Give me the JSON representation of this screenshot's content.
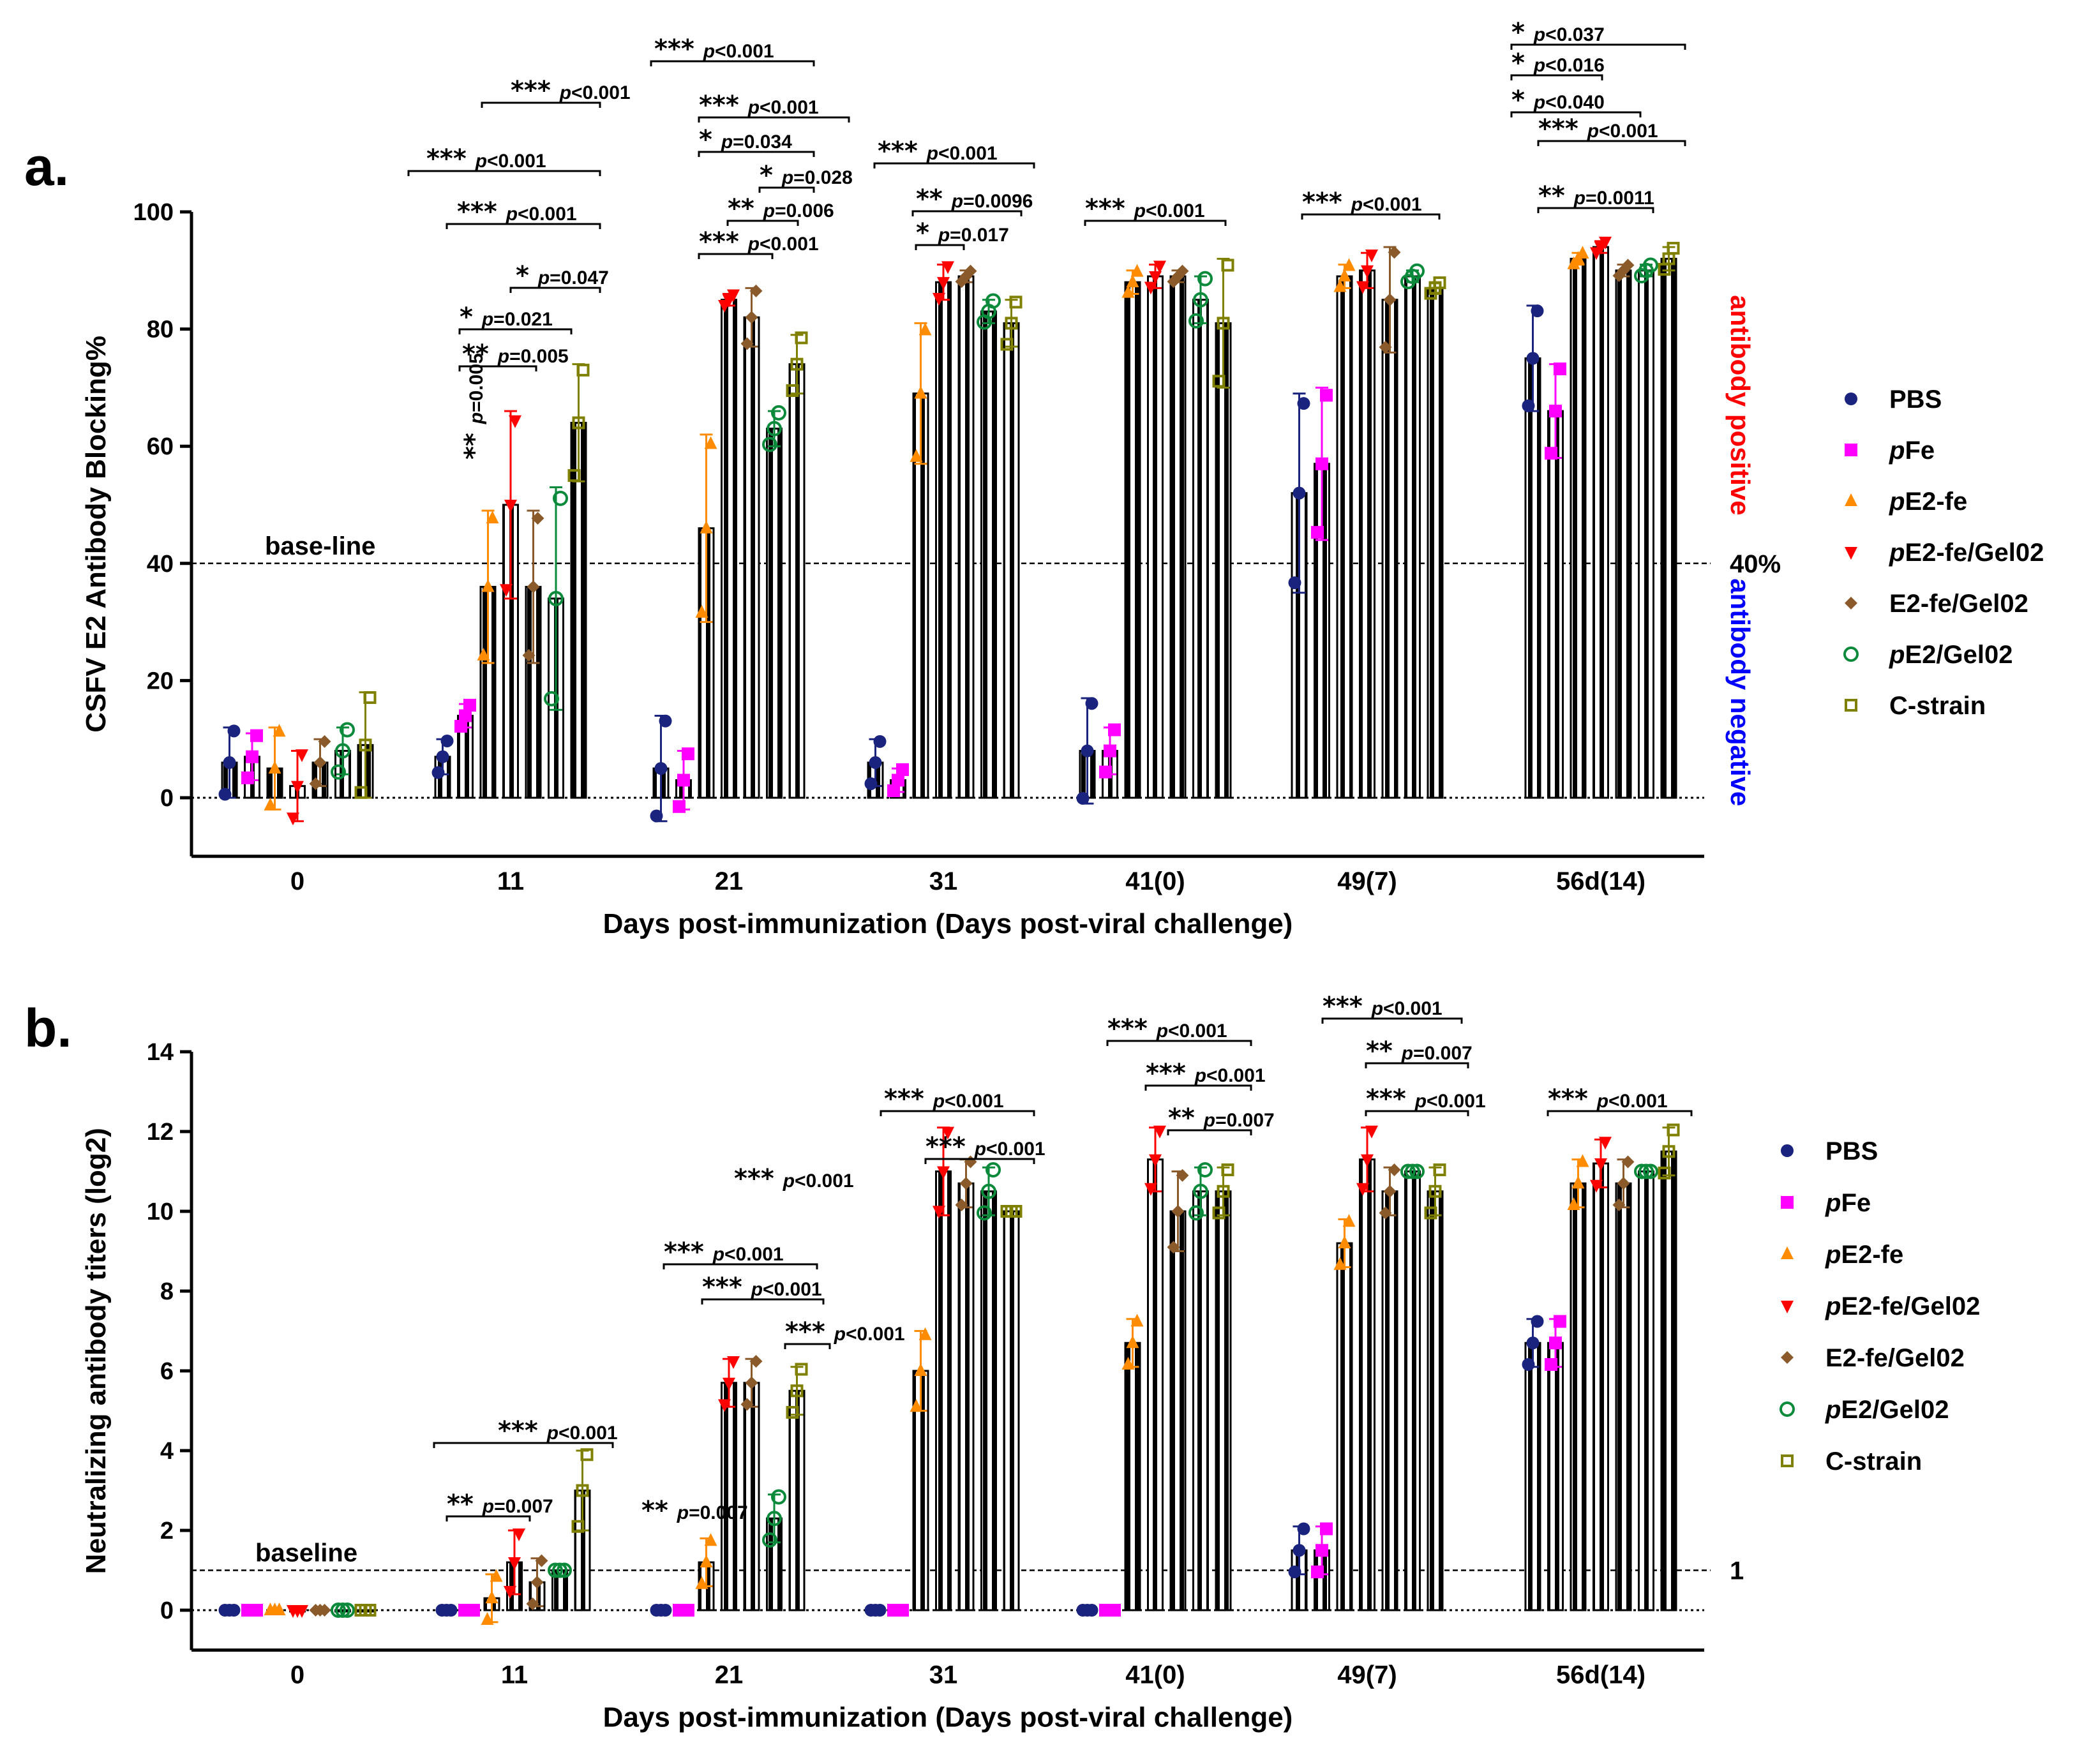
{
  "chart_data": [
    {
      "panel": "a.",
      "type": "bar",
      "ylabel": "CSFV E2 Antibody Blocking%",
      "xlabel": "Days post-immunization (Days post-viral challenge)",
      "ylim": [
        -10,
        100
      ],
      "yticks": [
        0,
        20,
        40,
        60,
        80,
        100
      ],
      "categories": [
        "0",
        "11",
        "21",
        "31",
        "41(0)",
        "49(7)",
        "56d(14)"
      ],
      "reference_line": {
        "value": 40,
        "label": "base-line",
        "right_label": "40%"
      },
      "side_labels": {
        "upper": "antibody positive",
        "lower": "antibody negative",
        "upper_color": "#ff0000",
        "lower_color": "#0000ff"
      },
      "series": [
        {
          "name": "PBS",
          "marker": "circle",
          "color": "#1a237e",
          "values": [
            6,
            7,
            5,
            6,
            8,
            52,
            75
          ],
          "sd": [
            6,
            3,
            9,
            4,
            9,
            17,
            9
          ]
        },
        {
          "name": "pFe",
          "marker": "square",
          "color": "#ff00ff",
          "values": [
            7,
            14,
            3,
            3,
            8,
            57,
            66
          ],
          "sd": [
            4,
            2,
            5,
            2,
            4,
            13,
            8
          ],
          "styled_name": [
            "p",
            "Fe"
          ]
        },
        {
          "name": "pE2-fe",
          "marker": "triangle-up",
          "color": "#ff8c00",
          "values": [
            5,
            36,
            46,
            69,
            88,
            89,
            92
          ],
          "sd": [
            7,
            13,
            16,
            12,
            2,
            2,
            1
          ],
          "styled_name": [
            "p",
            "E2-fe"
          ]
        },
        {
          "name": "pE2-fe/Gel02",
          "marker": "triangle-down",
          "color": "#ff0000",
          "values": [
            2,
            50,
            85,
            88,
            89,
            90,
            94
          ],
          "sd": [
            6,
            16,
            1,
            3,
            2,
            3,
            1
          ],
          "styled_name": [
            "p",
            "E2-fe/Gel02"
          ]
        },
        {
          "name": "E2-fe/Gel02",
          "marker": "diamond",
          "color": "#8b5a2b",
          "values": [
            6,
            36,
            82,
            89,
            89,
            85,
            90
          ],
          "sd": [
            4,
            13,
            5,
            1,
            1,
            9,
            1
          ]
        },
        {
          "name": "pE2/Gel02",
          "marker": "circle-open",
          "color": "#0a8a3a",
          "values": [
            8,
            34,
            63,
            83,
            85,
            89,
            90
          ],
          "sd": [
            4,
            19,
            3,
            2,
            4,
            1,
            1
          ],
          "styled_name": [
            "p",
            "E2/Gel02"
          ]
        },
        {
          "name": "C-strain",
          "marker": "square-open",
          "color": "#808000",
          "values": [
            9,
            64,
            74,
            81,
            81,
            87,
            92
          ],
          "sd": [
            9,
            10,
            5,
            4,
            11,
            1,
            2
          ]
        }
      ]
    },
    {
      "panel": "b.",
      "type": "bar",
      "ylabel": "Neutralizing antibody titers (log2)",
      "xlabel": "Days post-immunization (Days post-viral challenge)",
      "ylim": [
        -1,
        14
      ],
      "yticks": [
        0,
        2,
        4,
        6,
        8,
        10,
        12,
        14
      ],
      "categories": [
        "0",
        "11",
        "21",
        "31",
        "41(0)",
        "49(7)",
        "56d(14)"
      ],
      "reference_line": {
        "value": 1,
        "label": "baseline",
        "right_label": "1"
      },
      "series": [
        {
          "name": "PBS",
          "marker": "circle",
          "color": "#1a237e",
          "values": [
            0,
            0,
            0,
            0,
            0,
            1.5,
            6.7
          ],
          "sd": [
            0,
            0,
            0,
            0,
            0,
            0.6,
            0.6
          ]
        },
        {
          "name": "pFe",
          "marker": "square",
          "color": "#ff00ff",
          "values": [
            0,
            0,
            0,
            0,
            0,
            1.5,
            6.7
          ],
          "sd": [
            0,
            0,
            0,
            0,
            0,
            0.6,
            0.6
          ],
          "styled_name": [
            "p",
            "Fe"
          ]
        },
        {
          "name": "pE2-fe",
          "marker": "triangle-up",
          "color": "#ff8c00",
          "values": [
            0,
            0.3,
            1.2,
            6,
            6.7,
            9.2,
            10.7
          ],
          "sd": [
            0,
            0.6,
            0.6,
            1,
            0.6,
            0.6,
            0.6
          ],
          "styled_name": [
            "p",
            "E2-fe"
          ]
        },
        {
          "name": "pE2-fe/Gel02",
          "marker": "triangle-down",
          "color": "#ff0000",
          "values": [
            0,
            1.2,
            5.7,
            11,
            11.3,
            11.3,
            11.2
          ],
          "sd": [
            0,
            0.8,
            0.6,
            1.1,
            0.8,
            0.8,
            0.6
          ],
          "styled_name": [
            "p",
            "E2-fe/Gel02"
          ]
        },
        {
          "name": "E2-fe/Gel02",
          "marker": "diamond",
          "color": "#8b5a2b",
          "values": [
            0,
            0.7,
            5.7,
            10.7,
            10,
            10.5,
            10.7
          ],
          "sd": [
            0,
            0.6,
            0.6,
            0.6,
            1,
            0.6,
            0.6
          ]
        },
        {
          "name": "pE2/Gel02",
          "marker": "circle-open",
          "color": "#0a8a3a",
          "values": [
            0,
            1,
            2.3,
            10.5,
            10.5,
            11,
            11
          ],
          "sd": [
            0,
            0,
            0.6,
            0.6,
            0.6,
            0,
            0
          ],
          "styled_name": [
            "p",
            "E2/Gel02"
          ]
        },
        {
          "name": "C-strain",
          "marker": "square-open",
          "color": "#808000",
          "values": [
            0,
            3,
            5.5,
            10,
            10.5,
            10.5,
            11.5
          ],
          "sd": [
            0,
            1,
            0.6,
            0,
            0.6,
            0.6,
            0.6
          ]
        }
      ]
    }
  ],
  "annotations_a": [
    {
      "cat": 1,
      "stars": "***",
      "p": "p<0.001"
    },
    {
      "cat": 1,
      "stars": "***",
      "p": "p<0.001"
    },
    {
      "cat": 1,
      "stars": "***",
      "p": "p<0.001"
    },
    {
      "cat": 1,
      "stars": "*",
      "p": "p=0.047"
    },
    {
      "cat": 1,
      "stars": "*",
      "p": "p=0.021"
    },
    {
      "cat": 1,
      "stars": "**",
      "p": "p=0.005"
    },
    {
      "cat": 1,
      "stars": "**",
      "p": "p=0.005",
      "vertical": true
    },
    {
      "cat": 2,
      "stars": "***",
      "p": "p<0.001"
    },
    {
      "cat": 2,
      "stars": "***",
      "p": "p<0.001"
    },
    {
      "cat": 2,
      "stars": "*",
      "p": "p=0.034"
    },
    {
      "cat": 2,
      "stars": "*",
      "p": "p=0.028"
    },
    {
      "cat": 2,
      "stars": "**",
      "p": "p=0.006"
    },
    {
      "cat": 2,
      "stars": "***",
      "p": "p<0.001"
    },
    {
      "cat": 3,
      "stars": "***",
      "p": "p<0.001"
    },
    {
      "cat": 3,
      "stars": "**",
      "p": "p=0.0096"
    },
    {
      "cat": 3,
      "stars": "*",
      "p": "p=0.017"
    },
    {
      "cat": 4,
      "stars": "***",
      "p": "p<0.001"
    },
    {
      "cat": 5,
      "stars": "***",
      "p": "p<0.001"
    },
    {
      "cat": 6,
      "stars": "*",
      "p": "p<0.037"
    },
    {
      "cat": 6,
      "stars": "*",
      "p": "p<0.016"
    },
    {
      "cat": 6,
      "stars": "*",
      "p": "p<0.040"
    },
    {
      "cat": 6,
      "stars": "***",
      "p": "p<0.001"
    },
    {
      "cat": 6,
      "stars": "**",
      "p": "p=0.0011"
    }
  ],
  "annotations_b": [
    {
      "cat": 1,
      "stars": "***",
      "p": "p<0.001"
    },
    {
      "cat": 1,
      "stars": "**",
      "p": "p=0.007"
    },
    {
      "cat": 2,
      "stars": "***",
      "p": "p<0.001"
    },
    {
      "cat": 2,
      "stars": "***",
      "p": "p<0.001"
    },
    {
      "cat": 2,
      "stars": "***",
      "p": "p<0.001"
    },
    {
      "cat": 2,
      "stars": "***",
      "p": "p<0.001"
    },
    {
      "cat": 2,
      "stars": "**",
      "p": "p=0.007"
    },
    {
      "cat": 3,
      "stars": "***",
      "p": "p<0.001"
    },
    {
      "cat": 3,
      "stars": "***",
      "p": "p<0.001"
    },
    {
      "cat": 4,
      "stars": "***",
      "p": "p<0.001"
    },
    {
      "cat": 4,
      "stars": "***",
      "p": "p<0.001"
    },
    {
      "cat": 4,
      "stars": "**",
      "p": "p=0.007"
    },
    {
      "cat": 5,
      "stars": "***",
      "p": "p<0.001"
    },
    {
      "cat": 5,
      "stars": "**",
      "p": "p=0.007"
    },
    {
      "cat": 5,
      "stars": "***",
      "p": "p<0.001"
    },
    {
      "cat": 6,
      "stars": "***",
      "p": "p<0.001"
    }
  ]
}
